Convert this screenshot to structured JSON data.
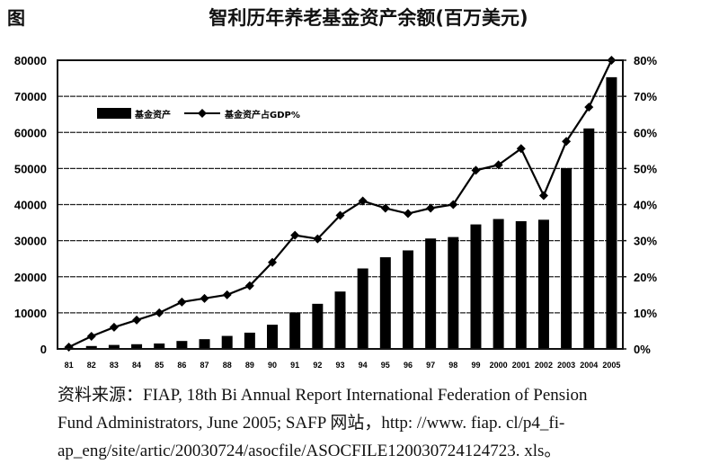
{
  "figure": {
    "label": "图",
    "title": "智利历年养老基金资产余额(百万美元)"
  },
  "legend": {
    "bar_label": "基金资产",
    "line_label": "基金资产占GDP%"
  },
  "axes": {
    "left_ticks": [
      "0",
      "10000",
      "20000",
      "30000",
      "40000",
      "50000",
      "60000",
      "70000",
      "80000"
    ],
    "right_ticks": [
      "0%",
      "10%",
      "20%",
      "30%",
      "40%",
      "50%",
      "60%",
      "70%",
      "80%"
    ],
    "x_ticks": [
      "81",
      "82",
      "83",
      "84",
      "85",
      "86",
      "87",
      "88",
      "89",
      "90",
      "91",
      "92",
      "93",
      "94",
      "95",
      "96",
      "97",
      "98",
      "99",
      "2000",
      "2001",
      "2002",
      "2003",
      "2004",
      "2005"
    ]
  },
  "source": {
    "line1": "资料来源：FIAP, 18th Bi Annual Report International Federation of Pension",
    "line2": "Fund Administrators, June 2005; SAFP 网站，http: //www. fiap. cl/p4_fi-",
    "line3": "ap_eng/site/artic/20030724/asocfile/ASOCFILE120030724124723. xls。"
  },
  "colors": {
    "bar": "#000000",
    "line": "#000000",
    "grid": "#222222",
    "background": "#ffffff"
  },
  "chart_data": {
    "type": "bar",
    "title": "智利历年养老基金资产余额(百万美元)",
    "categories": [
      "81",
      "82",
      "83",
      "84",
      "85",
      "86",
      "87",
      "88",
      "89",
      "90",
      "91",
      "92",
      "93",
      "94",
      "95",
      "96",
      "97",
      "98",
      "99",
      "2000",
      "2001",
      "2002",
      "2003",
      "2004",
      "2005"
    ],
    "series": [
      {
        "name": "基金资产",
        "type": "bar",
        "axis": "left",
        "values": [
          300,
          800,
          1100,
          1300,
          1500,
          2200,
          2700,
          3600,
          4500,
          6700,
          10100,
          12500,
          15900,
          22300,
          25400,
          27300,
          30600,
          31000,
          34500,
          36000,
          35400,
          35800,
          50100,
          61100,
          75300
        ]
      },
      {
        "name": "基金资产占GDP%",
        "type": "line",
        "axis": "right",
        "values": [
          0.5,
          3.5,
          6,
          8,
          10,
          13,
          14,
          15,
          17.5,
          24,
          31.5,
          30.5,
          37,
          41,
          39,
          37.5,
          39,
          40,
          49.5,
          51,
          55.5,
          42.5,
          57.5,
          67,
          80
        ]
      }
    ],
    "xlabel": "",
    "ylabel": "百万美元",
    "y2label": "%",
    "ylim": [
      0,
      80000
    ],
    "y2lim": [
      0,
      80
    ],
    "grid": true,
    "legend_position": "upper-left inside"
  }
}
